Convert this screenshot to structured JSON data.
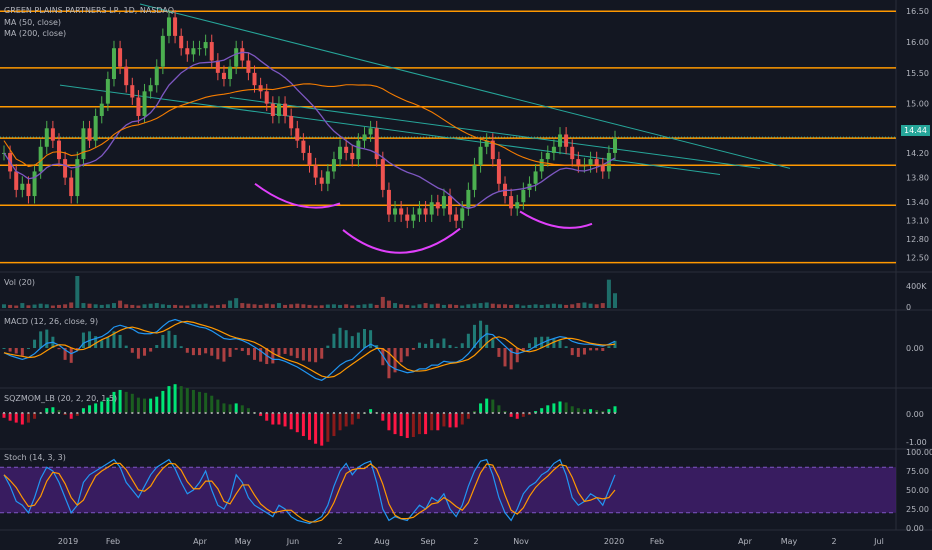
{
  "header": {
    "symbol_line": "GREEN PLAINS PARTNERS LP, 1D, NASDAQ",
    "ma50": "MA (50, close)",
    "ma200": "MA (200, close)"
  },
  "price_badge": "14.44",
  "panels": {
    "vol": "Vol (20)",
    "macd": "MACD (12, 26, close, 9)",
    "sqz": "SQZMOM_LB (20, 2, 20, 1.5)",
    "stoch": "Stoch (14, 3, 3)"
  },
  "colors": {
    "background": "#131722",
    "up": "#26a69a",
    "down": "#ef5350",
    "up_candle": "#4caf50",
    "down_candle": "#ef5350",
    "hline": "#ff9800",
    "ma50": "#7e57c2",
    "ma200": "#f57c00",
    "trend": "#26a69a",
    "arc": "#e040fb",
    "macd": "#2196f3",
    "signal": "#ff9800",
    "stoch_k": "#2196f3",
    "stoch_d": "#ff9800",
    "stoch_band": "#3f1d6b"
  },
  "chart_data": {
    "type": "candlestick",
    "title": "GREEN PLAINS PARTNERS LP, 1D, NASDAQ",
    "price_axis_ticks": [
      "16.50",
      "16.00",
      "15.50",
      "15.00",
      "14.60",
      "14.20",
      "13.80",
      "13.40",
      "13.10",
      "12.80",
      "12.50"
    ],
    "horizontal_levels": [
      16.5,
      15.58,
      14.95,
      14.44,
      14.0,
      13.35,
      12.42
    ],
    "current_price": 14.44,
    "x_ticks": [
      "2019",
      "Feb",
      "Apr",
      "May",
      "Jun",
      "2",
      "Aug",
      "Sep",
      "2",
      "Nov",
      "2020",
      "Feb",
      "Apr",
      "May",
      "2",
      "Jul"
    ],
    "volume_axis_ticks": [
      "400K",
      "0"
    ],
    "macd_axis_ticks": [
      "0.00"
    ],
    "sqz_axis_ticks": [
      "0.00",
      "-1.00"
    ],
    "stoch_axis_ticks": [
      "100.00",
      "75.00",
      "50.00",
      "25.00",
      "0.00"
    ],
    "stoch_band": [
      20,
      80
    ],
    "close_series": [
      14.2,
      13.9,
      13.6,
      13.7,
      13.5,
      13.9,
      14.3,
      14.6,
      14.4,
      14.1,
      13.8,
      13.5,
      14.1,
      14.6,
      14.4,
      14.8,
      15.0,
      15.4,
      15.9,
      15.6,
      15.3,
      15.1,
      14.8,
      15.2,
      15.3,
      15.6,
      16.1,
      16.4,
      16.1,
      15.9,
      15.8,
      15.9,
      15.9,
      16.0,
      15.7,
      15.5,
      15.4,
      15.6,
      15.9,
      15.7,
      15.5,
      15.3,
      15.2,
      15.0,
      14.8,
      15.0,
      14.8,
      14.6,
      14.4,
      14.2,
      14.0,
      13.8,
      13.7,
      13.9,
      14.1,
      14.3,
      14.2,
      14.1,
      14.4,
      14.5,
      14.6,
      14.1,
      13.6,
      13.2,
      13.3,
      13.2,
      13.1,
      13.2,
      13.3,
      13.2,
      13.4,
      13.3,
      13.5,
      13.2,
      13.1,
      13.3,
      13.6,
      14.0,
      14.3,
      14.4,
      14.1,
      13.7,
      13.5,
      13.3,
      13.4,
      13.6,
      13.7,
      13.9,
      14.1,
      14.2,
      14.3,
      14.5,
      14.3,
      14.1,
      14.0,
      14.0,
      14.1,
      14.0,
      13.9,
      14.2,
      14.44
    ],
    "volume_series": [
      30,
      25,
      20,
      40,
      22,
      28,
      35,
      30,
      20,
      25,
      30,
      45,
      260,
      40,
      35,
      30,
      25,
      30,
      40,
      60,
      30,
      25,
      20,
      30,
      35,
      40,
      30,
      25,
      25,
      20,
      20,
      30,
      30,
      35,
      20,
      25,
      30,
      60,
      80,
      40,
      35,
      30,
      25,
      35,
      30,
      40,
      25,
      30,
      35,
      30,
      25,
      20,
      22,
      28,
      30,
      25,
      30,
      20,
      25,
      30,
      35,
      25,
      90,
      60,
      40,
      30,
      25,
      20,
      30,
      40,
      30,
      35,
      25,
      30,
      25,
      20,
      30,
      35,
      40,
      45,
      35,
      30,
      30,
      25,
      30,
      20,
      25,
      30,
      25,
      30,
      35,
      30,
      25,
      30,
      40,
      45,
      35,
      30,
      40,
      230,
      120
    ],
    "macd_series": [
      -0.05,
      -0.08,
      -0.1,
      -0.12,
      -0.1,
      -0.06,
      0.0,
      0.05,
      0.06,
      0.03,
      -0.02,
      -0.06,
      -0.03,
      0.05,
      0.08,
      0.1,
      0.12,
      0.16,
      0.22,
      0.24,
      0.22,
      0.2,
      0.16,
      0.15,
      0.15,
      0.17,
      0.23,
      0.28,
      0.3,
      0.28,
      0.26,
      0.24,
      0.22,
      0.21,
      0.18,
      0.14,
      0.1,
      0.09,
      0.1,
      0.08,
      0.05,
      0.01,
      -0.03,
      -0.08,
      -0.12,
      -0.12,
      -0.14,
      -0.17,
      -0.2,
      -0.24,
      -0.28,
      -0.32,
      -0.34,
      -0.3,
      -0.24,
      -0.18,
      -0.14,
      -0.12,
      -0.06,
      0.0,
      0.04,
      0.01,
      -0.08,
      -0.18,
      -0.22,
      -0.24,
      -0.26,
      -0.25,
      -0.22,
      -0.22,
      -0.18,
      -0.18,
      -0.14,
      -0.15,
      -0.15,
      -0.12,
      -0.06,
      0.02,
      0.1,
      0.15,
      0.14,
      0.08,
      0.02,
      -0.04,
      -0.06,
      -0.04,
      -0.02,
      0.02,
      0.05,
      0.08,
      0.1,
      0.12,
      0.11,
      0.07,
      0.05,
      0.04,
      0.04,
      0.03,
      0.02,
      0.04,
      0.07
    ],
    "stoch_series": [
      70,
      55,
      35,
      30,
      20,
      40,
      65,
      80,
      75,
      60,
      40,
      20,
      30,
      60,
      70,
      75,
      80,
      85,
      90,
      80,
      60,
      50,
      40,
      55,
      70,
      80,
      85,
      90,
      78,
      60,
      45,
      50,
      60,
      75,
      50,
      30,
      25,
      40,
      70,
      60,
      40,
      30,
      25,
      20,
      15,
      30,
      25,
      15,
      10,
      8,
      6,
      10,
      15,
      30,
      55,
      75,
      85,
      70,
      80,
      85,
      88,
      60,
      25,
      10,
      15,
      12,
      10,
      20,
      30,
      25,
      40,
      35,
      45,
      25,
      15,
      30,
      55,
      75,
      88,
      90,
      70,
      40,
      20,
      10,
      25,
      45,
      55,
      60,
      70,
      75,
      85,
      90,
      70,
      40,
      30,
      35,
      45,
      40,
      30,
      50,
      70
    ]
  }
}
